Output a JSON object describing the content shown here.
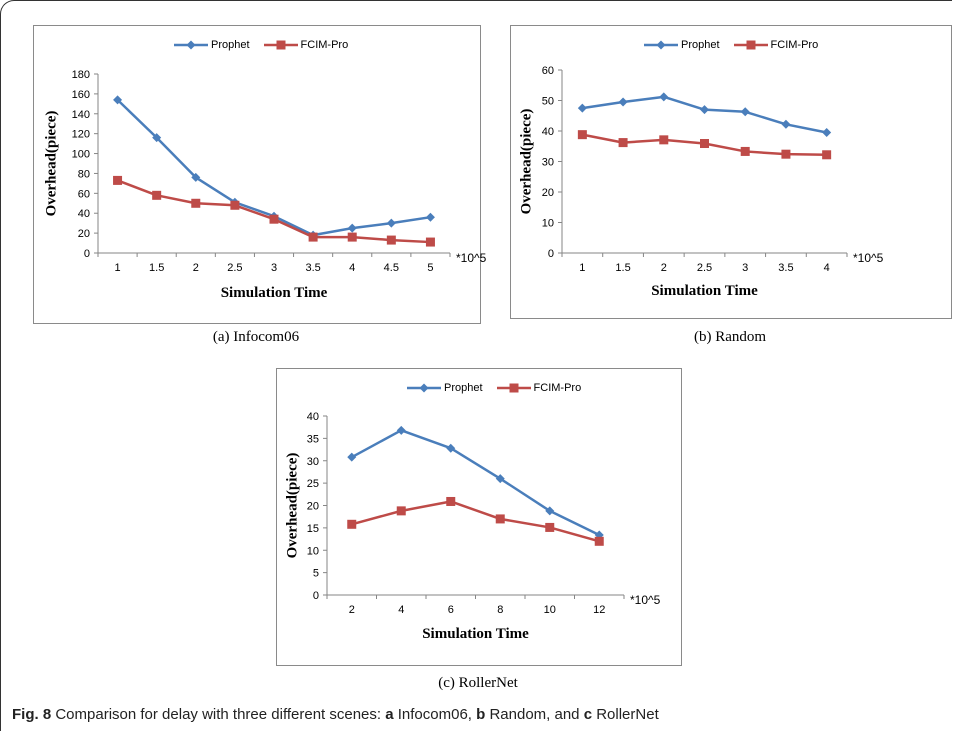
{
  "figure": {
    "label": "Fig. 8",
    "text_parts": [
      "Comparison for delay with three different scenes: ",
      "a",
      " Infocom06, ",
      "b",
      " Random, and ",
      "c",
      " RollerNet"
    ]
  },
  "colors": {
    "prophet": "#4a7ebb",
    "fcim": "#be4b48"
  },
  "chart_data": [
    {
      "type": "line",
      "caption": "(a) Infocom06",
      "categories": [
        "1",
        "1.5",
        "2",
        "2.5",
        "3",
        "3.5",
        "4",
        "4.5",
        "5"
      ],
      "series": [
        {
          "name": "Prophet",
          "values": [
            154,
            116,
            76,
            51,
            37,
            18,
            25,
            30,
            36
          ]
        },
        {
          "name": "FCIM-Pro",
          "values": [
            73,
            58,
            50,
            48,
            34,
            16,
            16,
            13,
            11
          ]
        }
      ],
      "xlabel": "Simulation Time",
      "ylabel": "Overhead(piece)",
      "x_unit": "*10^5",
      "ylim": [
        0,
        180
      ],
      "ystep": 20,
      "grid": false,
      "legend": "top"
    },
    {
      "type": "line",
      "caption": "(b) Random",
      "categories": [
        "1",
        "1.5",
        "2",
        "2.5",
        "3",
        "3.5",
        "4"
      ],
      "series": [
        {
          "name": "Prophet",
          "values": [
            47.5,
            49.5,
            51.2,
            47,
            46.3,
            42.2,
            39.5
          ]
        },
        {
          "name": "FCIM-Pro",
          "values": [
            38.8,
            36.2,
            37.1,
            35.9,
            33.3,
            32.4,
            32.2
          ]
        }
      ],
      "xlabel": "Simulation Time",
      "ylabel": "Overhead(piece)",
      "x_unit": "*10^5",
      "ylim": [
        0,
        60
      ],
      "ystep": 10,
      "grid": false,
      "legend": "top"
    },
    {
      "type": "line",
      "caption": "(c) RollerNet",
      "categories": [
        "2",
        "4",
        "6",
        "8",
        "10",
        "12"
      ],
      "series": [
        {
          "name": "Prophet",
          "values": [
            30.8,
            36.8,
            32.8,
            26,
            18.8,
            13.4
          ]
        },
        {
          "name": "FCIM-Pro",
          "values": [
            15.8,
            18.8,
            20.9,
            17,
            15.1,
            12
          ]
        }
      ],
      "xlabel": "Simulation Time",
      "ylabel": "Overhead(piece)",
      "x_unit": "*10^5",
      "ylim": [
        0,
        40
      ],
      "ystep": 5,
      "grid": false,
      "legend": "top"
    }
  ]
}
